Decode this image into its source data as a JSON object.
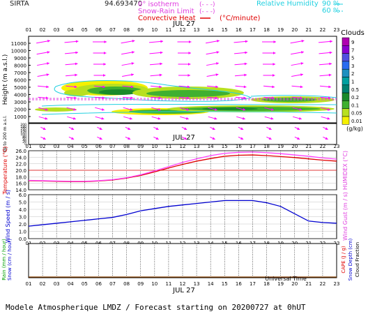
{
  "header": {
    "station": "SIRTA",
    "coords": "94.693470",
    "legend_isotherm": "0° isotherm",
    "legend_snow_rain": "Snow-Rain Limit",
    "legend_convective": "Convective Heat",
    "legend_convective_unit": "(°C/minute)",
    "legend_rh": "Relative Humidity",
    "rh_90": "90 %",
    "rh_60": "60 %"
  },
  "hours": [
    "01",
    "02",
    "03",
    "04",
    "05",
    "06",
    "07",
    "08",
    "09",
    "10",
    "11",
    "12",
    "13",
    "14",
    "15",
    "16",
    "17",
    "18",
    "19",
    "20",
    "21",
    "22",
    "23"
  ],
  "date_label": "JUL 27",
  "clouds": {
    "title": "Clouds",
    "unit": "(g/kg)",
    "scale": [
      "9",
      "7",
      "5",
      "3",
      "2",
      "1",
      "0.5",
      "0.2",
      "0.1",
      "0.05",
      "0.01"
    ],
    "colors": [
      "#b000b0",
      "#8a00d0",
      "#5050e0",
      "#2a6cf0",
      "#1e90c0",
      "#00a0a0",
      "#008070",
      "#1a8a2a",
      "#40b030",
      "#b8e020",
      "#f5f000"
    ]
  },
  "height_axis": {
    "label": "Height (m a.s.l.)",
    "label_low": "Up to 200 m a.s.l.",
    "ticks": [
      "11000",
      "10000",
      "9000",
      "8000",
      "7000",
      "6000",
      "5000",
      "4000",
      "3000",
      "2000",
      "1000"
    ],
    "low_ticks": [
      "200",
      "180",
      "160",
      "140",
      "120",
      "100",
      "80",
      "60",
      "40",
      "20",
      "0"
    ]
  },
  "panels": {
    "temperature_label": "Temperature (°C)",
    "humidex_label": "HUMIDEX (°C)",
    "wind_speed_label": "Wind Speed (m / s)",
    "wind_gust_label": "Wind Gust (m / s)",
    "rain_label": "Rain (mm / hour)",
    "snow_label": "Snow (cm / hour)",
    "cape_label": "CAPE (J / g)",
    "snow_depth_label": "Snow Depth (cm)",
    "cloud_fraction_label": "Cloud Fraction"
  },
  "footer": {
    "time_axis": "Universal Time",
    "title": "Modele Atmospherique LMDZ / Forecast starting on 20200727 at 0hUT"
  },
  "chart_data": [
    {
      "type": "line",
      "name": "temperature",
      "x": [
        1,
        2,
        3,
        4,
        5,
        6,
        7,
        8,
        9,
        10,
        11,
        12,
        13,
        14,
        15,
        16,
        17,
        18,
        19,
        20,
        21,
        22,
        23
      ],
      "ylim": [
        14.0,
        26.0
      ],
      "yticks": [
        "26.0",
        "24.0",
        "22.0",
        "20.0",
        "18.0",
        "16.0",
        "14.0"
      ],
      "series": [
        {
          "values": [
            16.8,
            16.7,
            16.6,
            16.5,
            16.5,
            16.7,
            17.0,
            17.6,
            18.4,
            19.5,
            20.7,
            21.8,
            22.8,
            23.6,
            24.3,
            24.6,
            24.7,
            24.5,
            24.2,
            23.9,
            23.5,
            23.1,
            22.8
          ],
          "color": "#e00000"
        },
        {
          "values": [
            16.9,
            16.8,
            16.7,
            16.6,
            16.6,
            16.8,
            17.1,
            17.7,
            18.6,
            19.8,
            21.1,
            22.4,
            23.5,
            24.5,
            25.2,
            25.5,
            25.6,
            25.4,
            25.1,
            24.7,
            24.3,
            23.8,
            23.4
          ],
          "color": "#ff40ff"
        }
      ]
    },
    {
      "type": "line",
      "name": "wind",
      "x": [
        1,
        2,
        3,
        4,
        5,
        6,
        7,
        8,
        9,
        10,
        11,
        12,
        13,
        14,
        15,
        16,
        17,
        18,
        19,
        20,
        21,
        22,
        23
      ],
      "ylim": [
        0.0,
        6.0
      ],
      "yticks": [
        "6.0",
        "5.0",
        "4.0",
        "3.0",
        "2.0",
        "1.0",
        "0.0"
      ],
      "series": [
        {
          "values": [
            1.7,
            1.9,
            2.1,
            2.3,
            2.5,
            2.7,
            2.9,
            3.3,
            3.8,
            4.1,
            4.4,
            4.6,
            4.8,
            5.0,
            5.2,
            5.2,
            5.2,
            4.9,
            4.4,
            3.4,
            2.4,
            2.2,
            2.1
          ],
          "color": "#0000d0"
        }
      ]
    },
    {
      "type": "line",
      "name": "precipitation",
      "x": [
        1,
        2,
        3,
        4,
        5,
        6,
        7,
        8,
        9,
        10,
        11,
        12,
        13,
        14,
        15,
        16,
        17,
        18,
        19,
        20,
        21,
        22,
        23
      ],
      "series": [
        {
          "values": [
            0,
            0,
            0,
            0,
            0,
            0,
            0,
            0,
            0,
            0,
            0,
            0,
            0,
            0,
            0,
            0,
            0,
            0,
            0,
            0,
            0,
            0,
            0
          ],
          "color": "#00a000"
        }
      ]
    }
  ]
}
